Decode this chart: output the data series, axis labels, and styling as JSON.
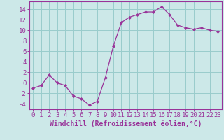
{
  "x": [
    0,
    1,
    2,
    3,
    4,
    5,
    6,
    7,
    8,
    9,
    10,
    11,
    12,
    13,
    14,
    15,
    16,
    17,
    18,
    19,
    20,
    21,
    22,
    23
  ],
  "y": [
    -1,
    -0.5,
    1.5,
    0,
    -0.5,
    -2.5,
    -3,
    -4.2,
    -3.5,
    1,
    7,
    11.5,
    12.5,
    13,
    13.5,
    13.5,
    14.5,
    13,
    11,
    10.5,
    10.2,
    10.5,
    10,
    9.8
  ],
  "line_color": "#993399",
  "marker": "D",
  "marker_size": 2,
  "bg_color": "#cce8e8",
  "grid_color": "#99cccc",
  "xlabel": "Windchill (Refroidissement éolien,°C)",
  "xlabel_color": "#993399",
  "xlabel_fontsize": 7,
  "ylabel_ticks": [
    -4,
    -2,
    0,
    2,
    4,
    6,
    8,
    10,
    12,
    14
  ],
  "xlim": [
    -0.5,
    23.5
  ],
  "ylim": [
    -5.0,
    15.5
  ],
  "tick_fontsize": 6.5,
  "tick_color": "#993399",
  "spine_color": "#993399",
  "linewidth": 0.9
}
